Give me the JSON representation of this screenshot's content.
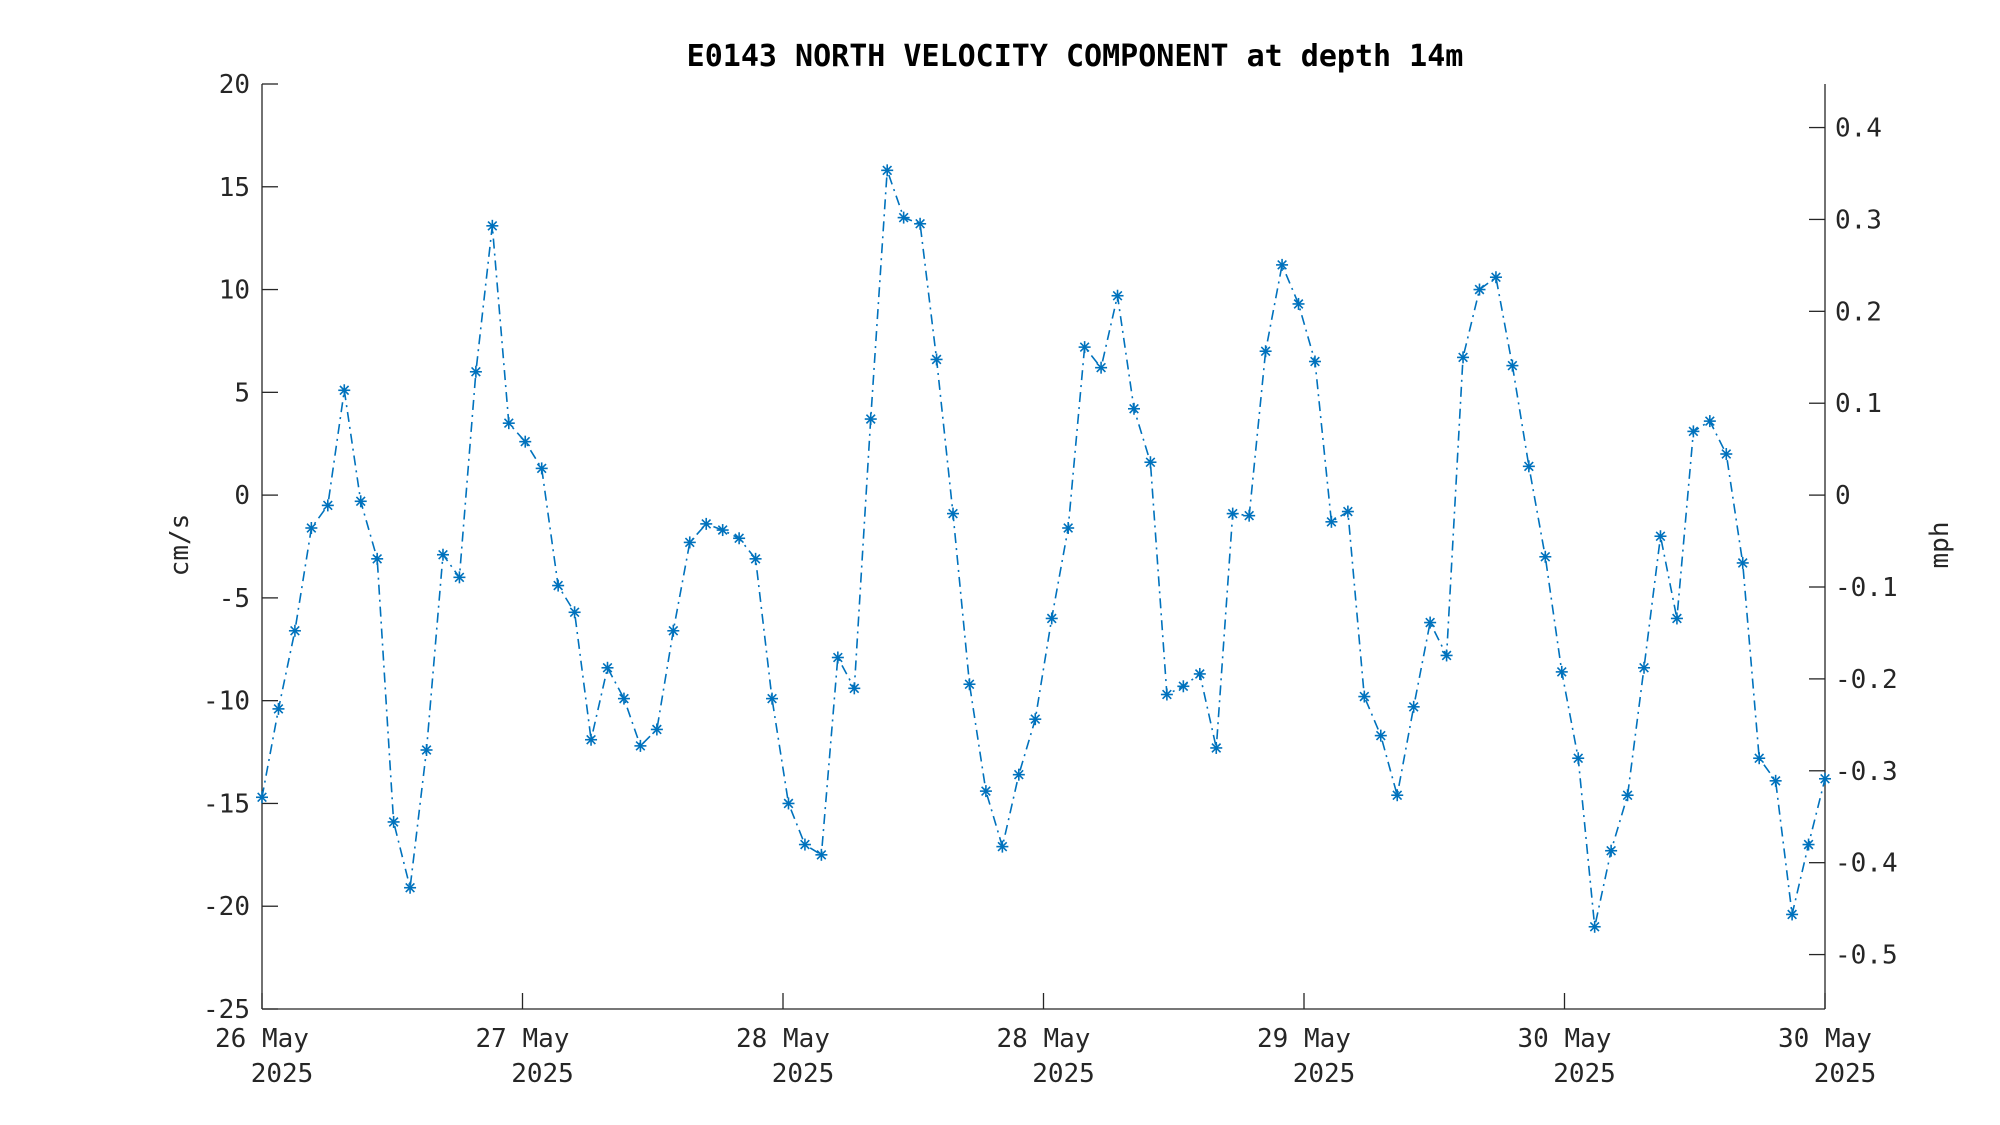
{
  "chart_data": {
    "type": "line",
    "title": "E0143 NORTH VELOCITY COMPONENT at depth 14m",
    "ylabel": "cm/s",
    "y2label": "mph",
    "ylim": [
      -25,
      20
    ],
    "y_ticks": [
      "20",
      "15",
      "10",
      "5",
      "0",
      "-5",
      "-10",
      "-15",
      "-20",
      "-25"
    ],
    "y2_ticks": [
      "0.4",
      "0.3",
      "0.2",
      "0.1",
      "0",
      "-0.1",
      "-0.2",
      "-0.3",
      "-0.4",
      "-0.5"
    ],
    "x_ticks": [
      {
        "line1": "26 May",
        "line2": "2025"
      },
      {
        "line1": "27 May",
        "line2": "2025"
      },
      {
        "line1": "28 May",
        "line2": "2025"
      },
      {
        "line1": "28 May",
        "line2": "2025"
      },
      {
        "line1": "29 May",
        "line2": "2025"
      },
      {
        "line1": "30 May",
        "line2": "2025"
      },
      {
        "line1": "30 May",
        "line2": "2025"
      }
    ],
    "grid": false,
    "marker": "asterisk",
    "line_style": "dash-dot",
    "color": "#0072BD",
    "series": [
      {
        "values": [
          -14.7,
          -10.4,
          -6.6,
          -1.6,
          -0.5,
          5.1,
          -0.3,
          -3.1,
          -15.9,
          -19.1,
          -12.4,
          -2.9,
          -4.0,
          6.0,
          13.1,
          3.5,
          2.6,
          1.3,
          -4.4,
          -5.7,
          -11.9,
          -8.4,
          -9.9,
          -12.2,
          -11.4,
          -6.6,
          -2.3,
          -1.4,
          -1.7,
          -2.1,
          -3.1,
          -9.9,
          -15.0,
          -17.0,
          -17.5,
          -7.9,
          -9.4,
          3.7,
          15.8,
          13.5,
          13.2,
          6.6,
          -0.9,
          -9.2,
          -14.4,
          -17.1,
          -13.6,
          -10.9,
          -6.0,
          -1.6,
          7.2,
          6.2,
          9.7,
          4.2,
          1.6,
          -9.7,
          -9.3,
          -8.7,
          -12.3,
          -0.9,
          -1.0,
          7.0,
          11.2,
          9.3,
          6.5,
          -1.3,
          -0.8,
          -9.8,
          -11.7,
          -14.6,
          -10.3,
          -6.2,
          -7.8,
          6.7,
          10.0,
          10.6,
          6.3,
          1.4,
          -3.0,
          -8.6,
          -12.8,
          -21.0,
          -17.3,
          -14.6,
          -8.4,
          -2.0,
          -6.0,
          3.1,
          3.6,
          2.0,
          -3.3,
          -12.8,
          -13.9,
          -20.4,
          -17.0,
          -13.8
        ]
      }
    ]
  }
}
